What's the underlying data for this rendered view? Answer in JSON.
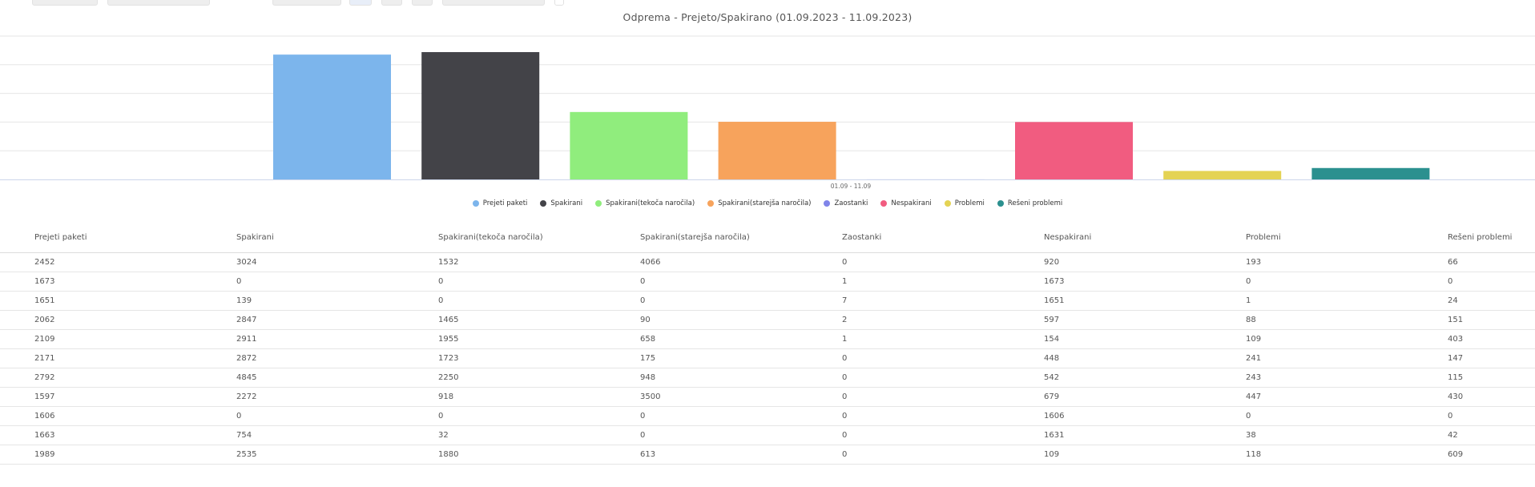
{
  "chart_data": {
    "type": "bar",
    "title": "Odprema - Prejeto/Spakirano (01.09.2023 - 11.09.2023)",
    "categories": [
      "01.09 - 11.09"
    ],
    "series": [
      {
        "name": "Prejeti paketi",
        "color": "#7cb5ec",
        "values": [
          21765
        ]
      },
      {
        "name": "Spakirani",
        "color": "#434348",
        "values": [
          22199
        ]
      },
      {
        "name": "Spakirani(tekoča naročila)",
        "color": "#90ed7d",
        "values": [
          11755
        ]
      },
      {
        "name": "Spakirani(starejša naročila)",
        "color": "#f7a35c",
        "values": [
          10050
        ]
      },
      {
        "name": "Zaostanki",
        "color": "#8085e9",
        "values": [
          11
        ]
      },
      {
        "name": "Nespakirani",
        "color": "#f15c80",
        "values": [
          10010
        ]
      },
      {
        "name": "Problemi",
        "color": "#e4d354",
        "values": [
          1478
        ]
      },
      {
        "name": "Rešeni problemi",
        "color": "#2b908f",
        "values": [
          1987
        ]
      }
    ],
    "ylim": [
      0,
      25000
    ],
    "grid": true,
    "legend": "bottom-center"
  },
  "table": {
    "headers": [
      "Prejeti paketi",
      "Spakirani",
      "Spakirani(tekoča naročila)",
      "Spakirani(starejša naročila)",
      "Zaostanki",
      "Nespakirani",
      "Problemi",
      "Rešeni problemi"
    ],
    "rows": [
      [
        "2452",
        "3024",
        "1532",
        "4066",
        "0",
        "920",
        "193",
        "66"
      ],
      [
        "1673",
        "0",
        "0",
        "0",
        "1",
        "1673",
        "0",
        "0"
      ],
      [
        "1651",
        "139",
        "0",
        "0",
        "7",
        "1651",
        "1",
        "24"
      ],
      [
        "2062",
        "2847",
        "1465",
        "90",
        "2",
        "597",
        "88",
        "151"
      ],
      [
        "2109",
        "2911",
        "1955",
        "658",
        "1",
        "154",
        "109",
        "403"
      ],
      [
        "2171",
        "2872",
        "1723",
        "175",
        "0",
        "448",
        "241",
        "147"
      ],
      [
        "2792",
        "4845",
        "2250",
        "948",
        "0",
        "542",
        "243",
        "115"
      ],
      [
        "1597",
        "2272",
        "918",
        "3500",
        "0",
        "679",
        "447",
        "430"
      ],
      [
        "1606",
        "0",
        "0",
        "0",
        "0",
        "1606",
        "0",
        "0"
      ],
      [
        "1663",
        "754",
        "32",
        "0",
        "0",
        "1631",
        "38",
        "42"
      ],
      [
        "1989",
        "2535",
        "1880",
        "613",
        "0",
        "109",
        "118",
        "609"
      ]
    ]
  }
}
